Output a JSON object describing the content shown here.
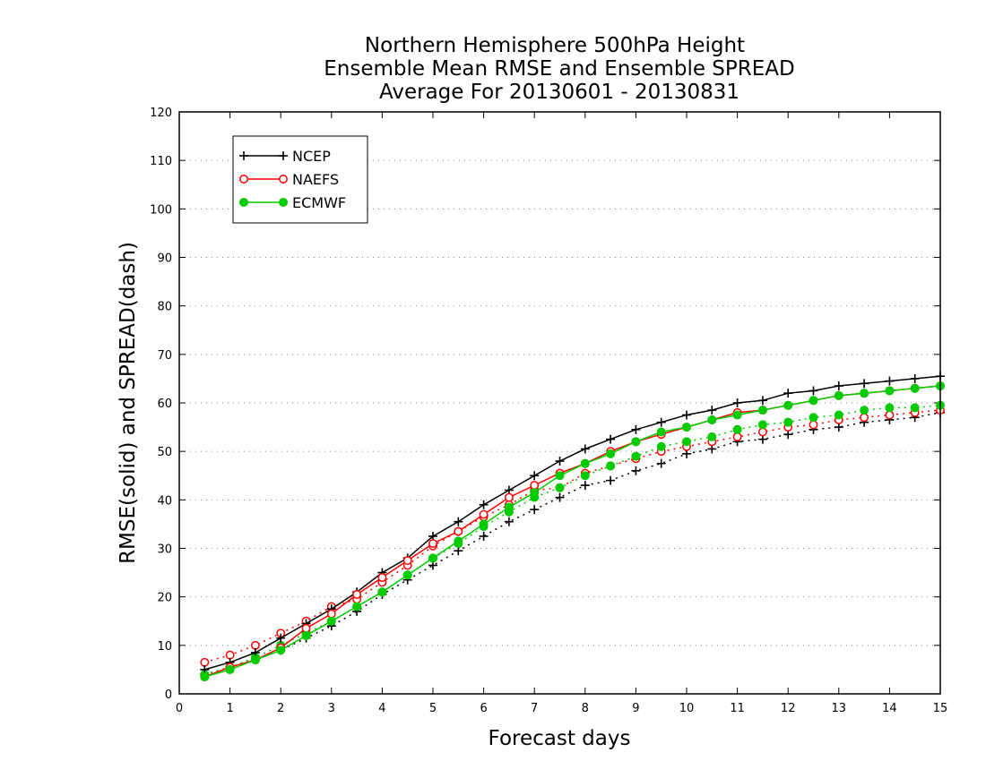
{
  "chart_data": {
    "type": "line",
    "title": [
      "Northern Hemisphere 500hPa Height",
      "Ensemble Mean RMSE and Ensemble SPREAD",
      "Average For 20130601 - 20130831"
    ],
    "xlabel": "Forecast days",
    "ylabel": "RMSE(solid) and SPREAD(dash)",
    "xlim": [
      0,
      15
    ],
    "ylim": [
      0,
      120
    ],
    "xticks": [
      0,
      1,
      2,
      3,
      4,
      5,
      6,
      7,
      8,
      9,
      10,
      11,
      12,
      13,
      14,
      15
    ],
    "yticks": [
      0,
      10,
      20,
      30,
      40,
      50,
      60,
      70,
      80,
      90,
      100,
      110,
      120
    ],
    "grid": "horizontal dotted",
    "legend_position": "top-left",
    "x": [
      0.5,
      1,
      1.5,
      2,
      2.5,
      3,
      3.5,
      4,
      4.5,
      5,
      5.5,
      6,
      6.5,
      7,
      7.5,
      8,
      8.5,
      9,
      9.5,
      10,
      10.5,
      11,
      11.5,
      12,
      12.5,
      13,
      13.5,
      14,
      14.5,
      15
    ],
    "series": [
      {
        "name": "NCEP",
        "color": "#000000",
        "marker": "plus",
        "rmse": [
          5,
          6.5,
          8.5,
          11.5,
          14.5,
          17.5,
          21,
          25,
          28,
          32.5,
          35.5,
          39,
          42,
          45,
          48,
          50.5,
          52.5,
          54.5,
          56,
          57.5,
          58.5,
          60,
          60.5,
          62,
          62.5,
          63.5,
          64,
          64.5,
          65,
          65.5
        ],
        "spread": [
          4,
          5.5,
          7,
          9,
          11.5,
          14,
          17,
          20.5,
          23.5,
          26.5,
          29.5,
          32.5,
          35.5,
          38,
          40.5,
          43,
          44,
          46,
          47.5,
          49.5,
          50.5,
          52,
          52.5,
          53.5,
          54.5,
          55,
          56,
          56.5,
          57,
          58
        ]
      },
      {
        "name": "NAEFS",
        "color": "#ff0000",
        "marker": "open-circle",
        "rmse": [
          3.5,
          5.5,
          7,
          9.5,
          13.5,
          16.5,
          20.5,
          24,
          27.5,
          31,
          33.5,
          37,
          40.5,
          43,
          45.5,
          47.5,
          50,
          52,
          53.5,
          55,
          56.5,
          58,
          58.5,
          59.5,
          60.5,
          61.5,
          62,
          62.5,
          63,
          63.5
        ],
        "spread": [
          6.5,
          8,
          10,
          12.5,
          15,
          18,
          19.5,
          23,
          26.5,
          30.5,
          33.5,
          36.5,
          39,
          42,
          42.5,
          45.5,
          47,
          48.5,
          50,
          51,
          52,
          53,
          54,
          55,
          55.5,
          56.5,
          57,
          57.5,
          58,
          58.5
        ]
      },
      {
        "name": "ECMWF",
        "color": "#00cc00",
        "marker": "filled-circle",
        "rmse": [
          3.5,
          5,
          7,
          9,
          12,
          15,
          18,
          21,
          24.5,
          28,
          31.5,
          35,
          38.5,
          41.5,
          45,
          47.5,
          49.5,
          52,
          54,
          55,
          56.5,
          57.5,
          58.5,
          59.5,
          60.5,
          61.5,
          62,
          62.5,
          63,
          63.5
        ],
        "spread": [
          4,
          5.5,
          7.5,
          10,
          12.5,
          15,
          18,
          21,
          24.5,
          28,
          31,
          34.5,
          37.5,
          40.5,
          42.5,
          45,
          47,
          49,
          51,
          52,
          53,
          54.5,
          55.5,
          56,
          57,
          57.5,
          58.5,
          59,
          59,
          59.5
        ]
      }
    ]
  }
}
